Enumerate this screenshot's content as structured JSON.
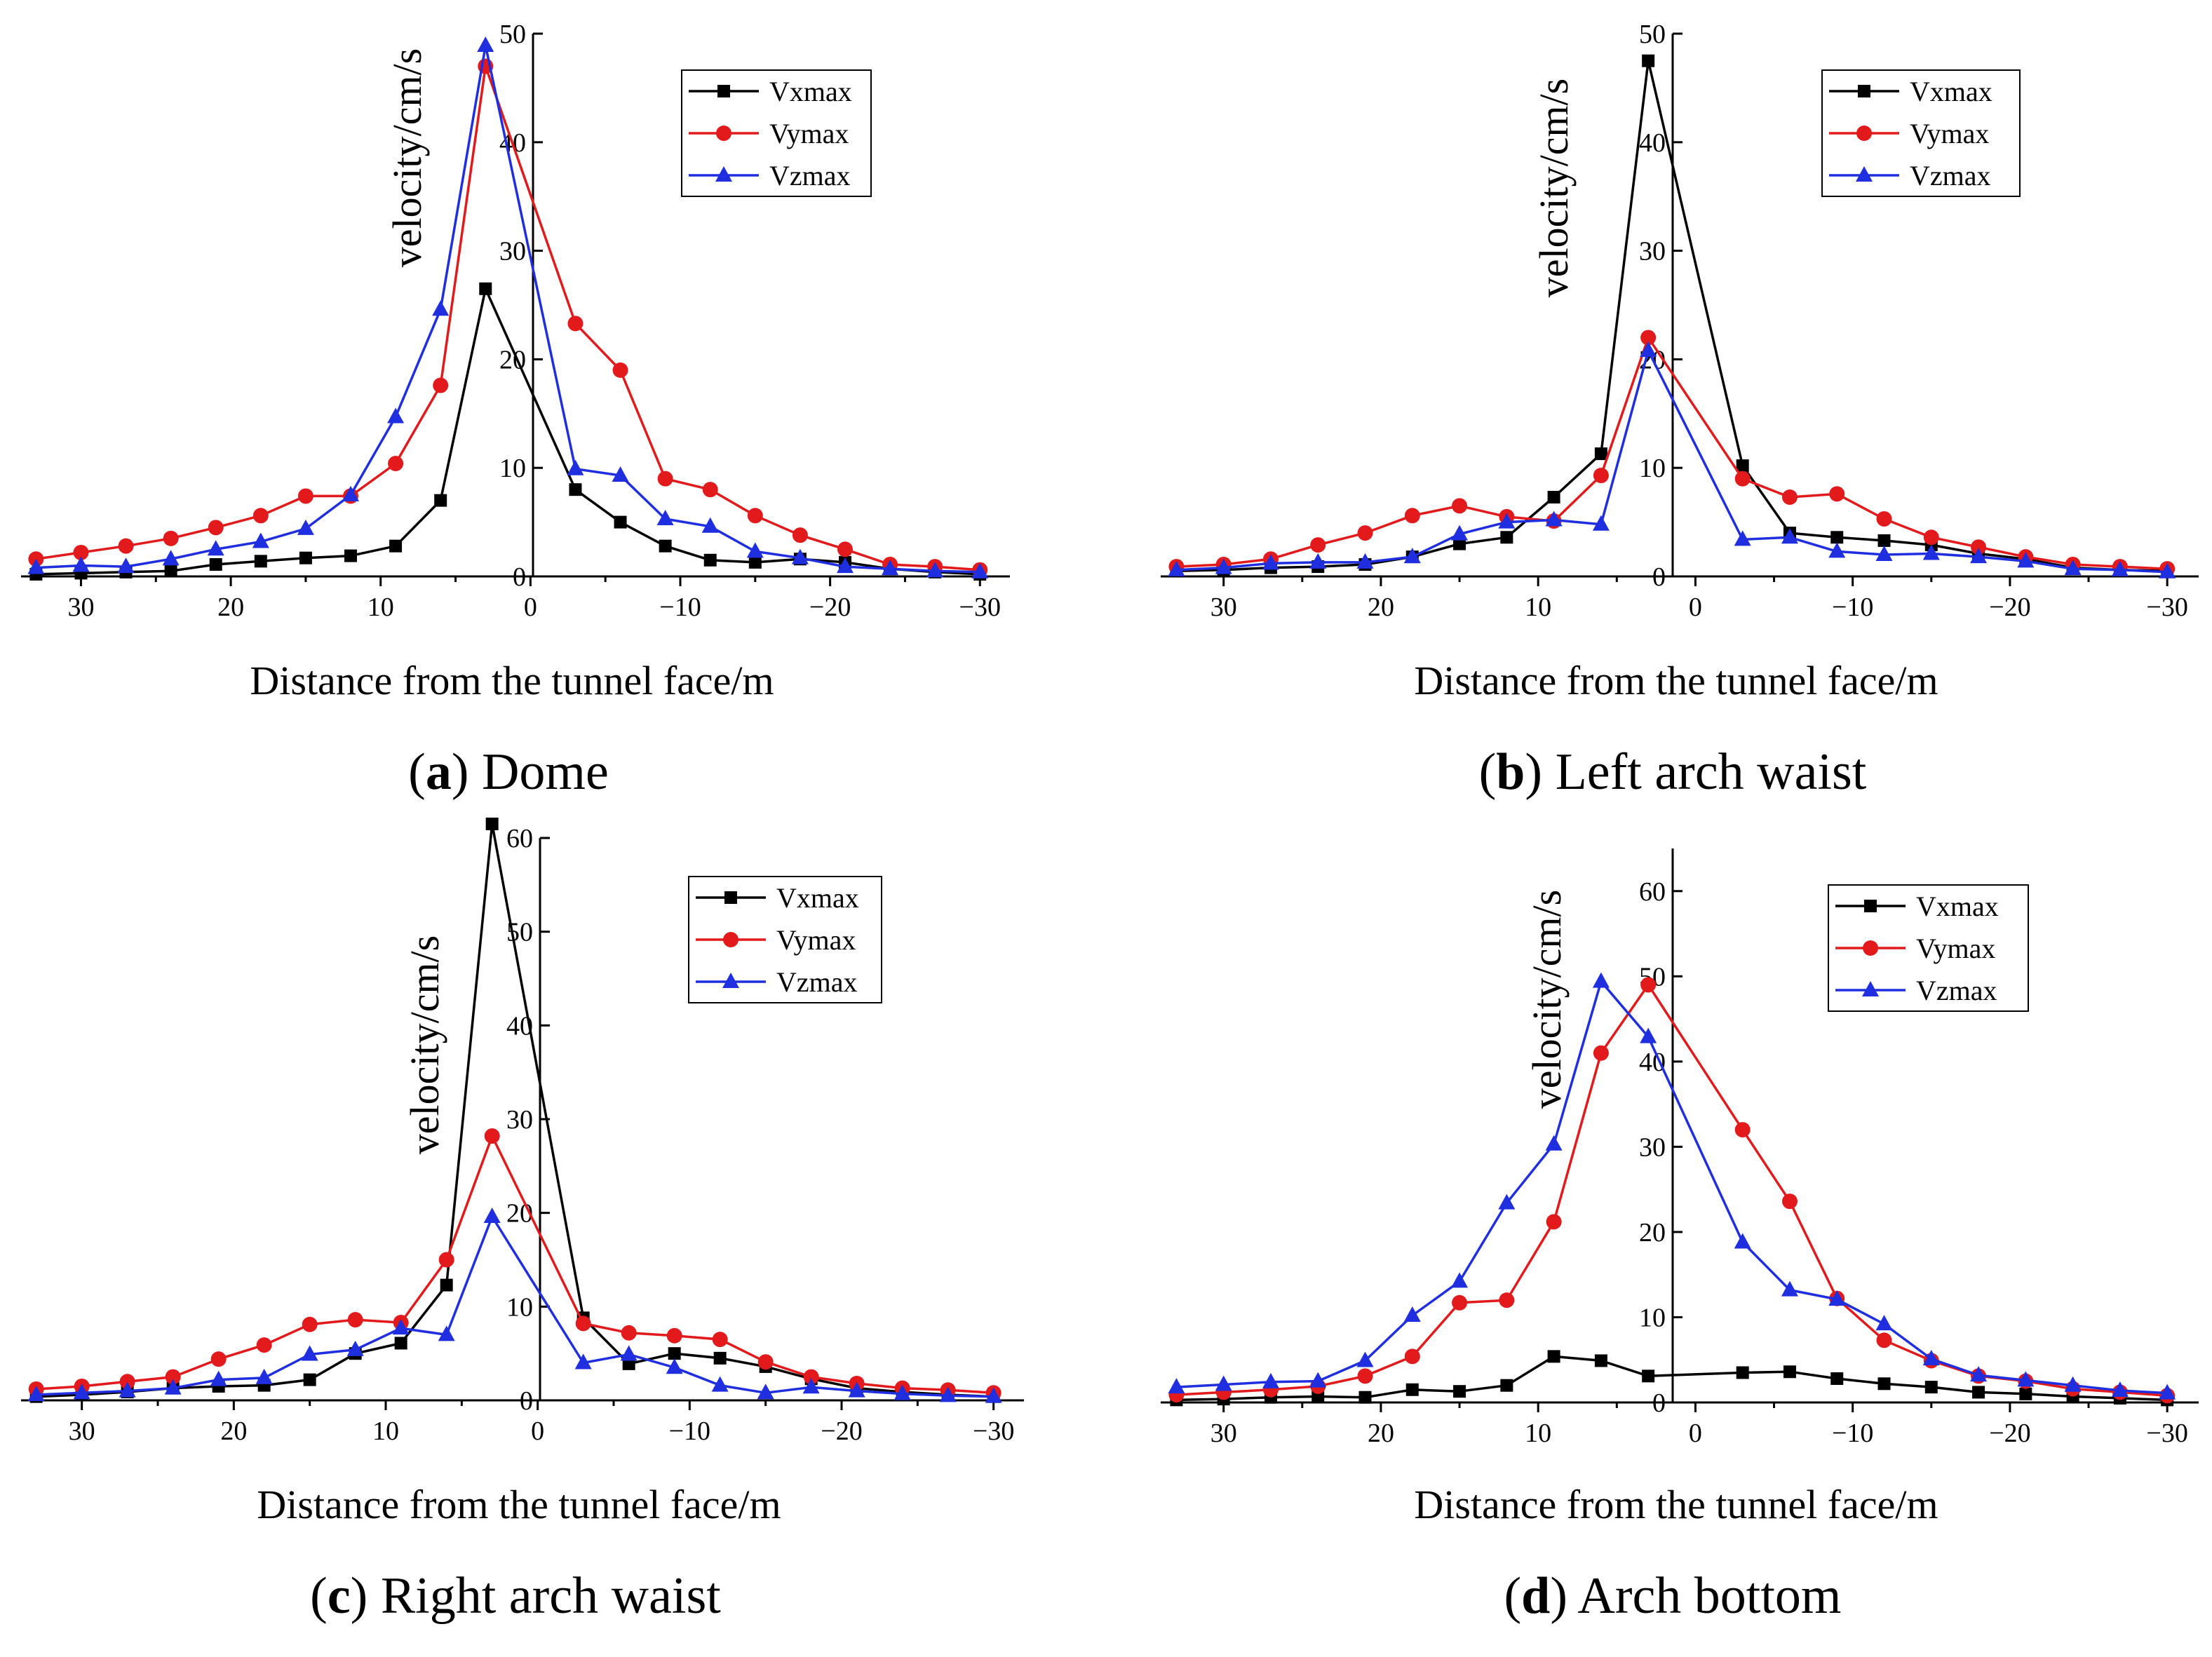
{
  "figure": {
    "colors": {
      "Vxmax": "#000000",
      "Vymax": "#e31a1c",
      "Vzmax": "#1f2fe0"
    },
    "marker_shapes": {
      "Vxmax": "square",
      "Vymax": "circle",
      "Vzmax": "triangle"
    }
  },
  "chart_data": [
    {
      "id": "a",
      "type": "line",
      "caption_letter": "a",
      "caption_text": "Dome",
      "xlabel": "Distance from the tunnel face/m",
      "ylabel": "velocity/cm/s",
      "xlim": [
        34,
        -32
      ],
      "ylim": [
        0,
        50
      ],
      "xticks": [
        30,
        20,
        10,
        0,
        -10,
        -20,
        -30
      ],
      "xtick_labels": [
        "30",
        "20",
        "10",
        "0",
        "−10",
        "−20",
        "−30"
      ],
      "yticks": [
        0,
        10,
        20,
        30,
        40,
        50
      ],
      "ytick_labels": [
        "0",
        "10",
        "20",
        "30",
        "40",
        "50"
      ],
      "legend": "top-right",
      "x": [
        33,
        30,
        27,
        24,
        21,
        18,
        15,
        12,
        9,
        6,
        3,
        -3,
        -6,
        -9,
        -12,
        -15,
        -18,
        -21,
        -24,
        -27,
        -30
      ],
      "series": [
        {
          "name": "Vxmax",
          "values": [
            0.2,
            0.3,
            0.4,
            0.5,
            1.1,
            1.4,
            1.7,
            1.9,
            2.8,
            7.0,
            26.5,
            8.0,
            5.0,
            2.8,
            1.5,
            1.3,
            1.6,
            1.3,
            0.7,
            0.4,
            0.2
          ]
        },
        {
          "name": "Vymax",
          "values": [
            1.6,
            2.2,
            2.8,
            3.5,
            4.5,
            5.6,
            7.4,
            7.4,
            10.4,
            17.6,
            47.0,
            23.3,
            19.0,
            9.0,
            8.0,
            5.6,
            3.8,
            2.5,
            1.1,
            0.9,
            0.6
          ]
        },
        {
          "name": "Vzmax",
          "values": [
            0.8,
            1.0,
            0.9,
            1.6,
            2.5,
            3.2,
            4.4,
            7.5,
            14.7,
            24.6,
            48.9,
            9.9,
            9.3,
            5.3,
            4.6,
            2.3,
            1.7,
            0.9,
            0.7,
            0.5,
            0.4
          ]
        }
      ]
    },
    {
      "id": "b",
      "type": "line",
      "caption_letter": "b",
      "caption_text": "Left arch waist",
      "xlabel": "Distance from the tunnel face/m",
      "ylabel": "velocity/cm/s",
      "xlim": [
        34,
        -32
      ],
      "ylim": [
        0,
        50
      ],
      "xticks": [
        30,
        20,
        10,
        0,
        -10,
        -20,
        -30
      ],
      "xtick_labels": [
        "30",
        "20",
        "10",
        "0",
        "−10",
        "−20",
        "−30"
      ],
      "yticks": [
        0,
        10,
        20,
        30,
        40,
        50
      ],
      "ytick_labels": [
        "0",
        "10",
        "20",
        "30",
        "40",
        "50"
      ],
      "legend": "top-right",
      "x": [
        33,
        30,
        27,
        24,
        21,
        18,
        15,
        12,
        9,
        6,
        3,
        -3,
        -6,
        -9,
        -12,
        -15,
        -18,
        -21,
        -24,
        -27,
        -30
      ],
      "series": [
        {
          "name": "Vxmax",
          "values": [
            0.5,
            0.6,
            0.8,
            0.9,
            1.1,
            1.8,
            3.0,
            3.6,
            7.3,
            11.3,
            47.5,
            10.2,
            4.0,
            3.6,
            3.3,
            2.9,
            2.1,
            1.6,
            0.8,
            0.6,
            0.5
          ]
        },
        {
          "name": "Vymax",
          "values": [
            0.9,
            1.1,
            1.6,
            2.9,
            4.0,
            5.6,
            6.5,
            5.5,
            5.1,
            9.3,
            22.0,
            9.0,
            7.3,
            7.6,
            5.3,
            3.6,
            2.7,
            1.8,
            1.1,
            0.9,
            0.7
          ]
        },
        {
          "name": "Vzmax",
          "values": [
            0.6,
            0.8,
            1.2,
            1.3,
            1.3,
            1.8,
            3.9,
            5.0,
            5.2,
            4.8,
            20.8,
            3.4,
            3.6,
            2.3,
            2.0,
            2.1,
            1.8,
            1.4,
            0.7,
            0.6,
            0.4
          ]
        }
      ]
    },
    {
      "id": "c",
      "type": "line",
      "caption_letter": "c",
      "caption_text": "Right arch waist",
      "xlabel": "Distance from the tunnel face/m",
      "ylabel": "velocity/cm/s",
      "xlim": [
        34,
        -32
      ],
      "ylim": [
        0,
        60
      ],
      "xticks": [
        30,
        20,
        10,
        0,
        -10,
        -20,
        -30
      ],
      "xtick_labels": [
        "30",
        "20",
        "10",
        "0",
        "−10",
        "−20",
        "−30"
      ],
      "yticks": [
        0,
        10,
        20,
        30,
        40,
        50,
        60
      ],
      "ytick_labels": [
        "0",
        "10",
        "20",
        "30",
        "40",
        "50",
        "60"
      ],
      "legend": "top-right",
      "x": [
        33,
        30,
        27,
        24,
        21,
        18,
        15,
        12,
        9,
        6,
        3,
        -3,
        -6,
        -9,
        -12,
        -15,
        -18,
        -21,
        -24,
        -27,
        -30
      ],
      "series": [
        {
          "name": "Vxmax",
          "values": [
            0.4,
            0.6,
            0.9,
            1.3,
            1.5,
            1.6,
            2.2,
            5.0,
            6.1,
            12.3,
            61.5,
            8.8,
            3.9,
            5.0,
            4.5,
            3.6,
            2.3,
            1.3,
            0.9,
            0.6,
            0.4
          ]
        },
        {
          "name": "Vymax",
          "values": [
            1.2,
            1.5,
            2.0,
            2.5,
            4.4,
            5.9,
            8.1,
            8.6,
            8.3,
            15.0,
            28.2,
            8.2,
            7.2,
            6.9,
            6.5,
            4.1,
            2.5,
            1.8,
            1.3,
            1.1,
            0.8
          ]
        },
        {
          "name": "Vzmax",
          "values": [
            0.6,
            0.8,
            1.0,
            1.3,
            2.2,
            2.4,
            4.9,
            5.4,
            7.7,
            7.0,
            19.6,
            4.0,
            4.9,
            3.5,
            1.6,
            0.8,
            1.4,
            1.0,
            0.7,
            0.5,
            0.4
          ]
        }
      ]
    },
    {
      "id": "d",
      "type": "line",
      "caption_letter": "d",
      "caption_text": "Arch bottom",
      "xlabel": "Distance from the tunnel face/m",
      "ylabel": "velocity/cm/s",
      "xlim": [
        34,
        -32
      ],
      "ylim": [
        0,
        65
      ],
      "xticks": [
        30,
        20,
        10,
        0,
        -10,
        -20,
        -30
      ],
      "xtick_labels": [
        "30",
        "20",
        "10",
        "0",
        "−10",
        "−20",
        "−30"
      ],
      "yticks": [
        0,
        10,
        20,
        30,
        40,
        50,
        60
      ],
      "ytick_labels": [
        "0",
        "10",
        "20",
        "30",
        "40",
        "50",
        "60"
      ],
      "legend": "top-right",
      "x": [
        33,
        30,
        27,
        24,
        21,
        18,
        15,
        12,
        9,
        6,
        3,
        -3,
        -6,
        -9,
        -12,
        -15,
        -18,
        -21,
        -24,
        -27,
        -30
      ],
      "series": [
        {
          "name": "Vxmax",
          "values": [
            0.3,
            0.4,
            0.6,
            0.7,
            0.6,
            1.5,
            1.3,
            2.0,
            5.4,
            4.9,
            3.1,
            3.5,
            3.6,
            2.8,
            2.2,
            1.8,
            1.2,
            1.0,
            0.7,
            0.5,
            0.3
          ]
        },
        {
          "name": "Vymax",
          "values": [
            0.9,
            1.2,
            1.5,
            1.9,
            3.1,
            5.4,
            11.7,
            12.0,
            21.2,
            41.0,
            49.0,
            32.0,
            23.6,
            12.2,
            7.3,
            4.9,
            3.1,
            2.5,
            1.6,
            1.2,
            0.8
          ]
        },
        {
          "name": "Vzmax",
          "values": [
            1.8,
            2.1,
            2.4,
            2.5,
            4.9,
            10.2,
            14.2,
            23.4,
            30.3,
            49.4,
            42.9,
            18.8,
            13.2,
            12.1,
            9.2,
            5.1,
            3.2,
            2.6,
            2.0,
            1.4,
            1.1
          ]
        }
      ]
    }
  ]
}
